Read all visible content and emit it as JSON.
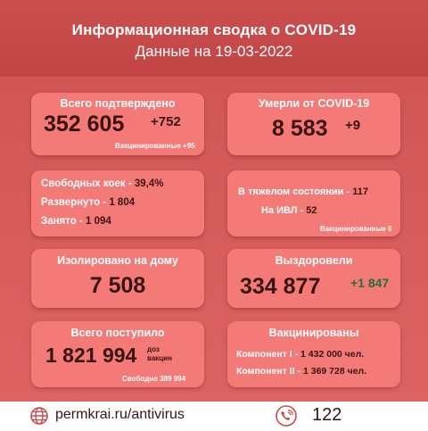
{
  "header": {
    "title": "Информационная сводка о COVID-19",
    "subtitle": "Данные на 19-03-2022"
  },
  "confirmed": {
    "title": "Всего подтверждено",
    "value": "352 605",
    "delta": "+752",
    "note": "Вакцинированные +95"
  },
  "deaths": {
    "title": "Умерли от COVID-19",
    "value": "8 583",
    "delta": "+9"
  },
  "beds": {
    "free_label": "Свободных коек - ",
    "free_value": "39,4%",
    "deployed_label": "Развернуто - ",
    "deployed_value": "1 804",
    "occupied_label": "Занято - ",
    "occupied_value": "1 094"
  },
  "severe": {
    "severe_label": "В тяжелом состоянии - ",
    "severe_value": "117",
    "ventilator_label": "На ИВЛ - ",
    "ventilator_value": "52",
    "note": "Вакцинированные 6"
  },
  "isolated": {
    "title": "Изолировано на дому",
    "value": "7 508"
  },
  "recovered": {
    "title": "Выздоровели",
    "value": "334 877",
    "delta": "+1 847"
  },
  "vaccine_supply": {
    "title": "Всего поступило",
    "value": "1 821 994",
    "unit_line1": "доз",
    "unit_line2": "вакцин",
    "note": "Свободно 389 994"
  },
  "vaccinated": {
    "title": "Вакцинированы",
    "comp1_label": "Компонент I - ",
    "comp1_value": "1 432 000 чел.",
    "comp2_label": "Компонент II - ",
    "comp2_value": "1 369 728 чел."
  },
  "footer": {
    "url": "permkrai.ru/antivirus",
    "phone": "122",
    "globe_icon": "globe-icon",
    "phone_icon": "phone-icon"
  },
  "colors": {
    "header": "#c84b4b",
    "card": "#f47a78",
    "dark_text": "#3a1313",
    "recovered_delta": "#1f6f43"
  }
}
